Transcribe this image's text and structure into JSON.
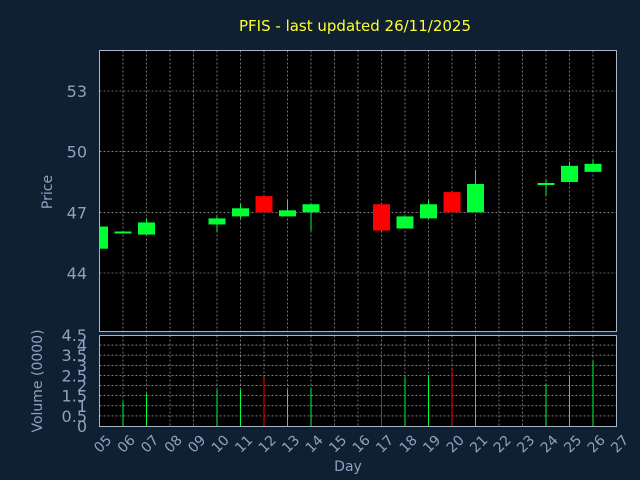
{
  "chart_data": {
    "type": "candlestick",
    "title": "PFIS - last updated 26/11/2025",
    "ylabel_price": "Price",
    "ylabel_volume": "Volume (0000)",
    "xlabel": "Day",
    "x_ticks": [
      "05",
      "06",
      "07",
      "08",
      "09",
      "10",
      "11",
      "12",
      "13",
      "14",
      "15",
      "16",
      "17",
      "18",
      "19",
      "20",
      "21",
      "22",
      "23",
      "24",
      "25",
      "26",
      "27"
    ],
    "price_ticks": [
      "53",
      "50",
      "47",
      "44"
    ],
    "volume_ticks": [
      "0",
      "0.5",
      "1",
      "1.5",
      "2",
      "2.5",
      "3",
      "3.5",
      "4",
      "4.5"
    ],
    "price_range": [
      42.0,
      55.0
    ],
    "volume_range": [
      0,
      4.5
    ],
    "grid": true,
    "up_color": "#00ff33",
    "down_color": "#ff0000",
    "candles": [
      {
        "day": 5,
        "open": 45.2,
        "high": 46.3,
        "low": 45.2,
        "close": 46.3,
        "volume": 0.0
      },
      {
        "day": 6,
        "open": 46.0,
        "high": 46.0,
        "low": 46.0,
        "close": 46.0,
        "volume": 1.2
      },
      {
        "day": 7,
        "open": 45.9,
        "high": 46.7,
        "low": 45.9,
        "close": 46.5,
        "volume": 1.6
      },
      {
        "day": 10,
        "open": 46.4,
        "high": 46.8,
        "low": 46.0,
        "close": 46.7,
        "volume": 1.8
      },
      {
        "day": 11,
        "open": 46.8,
        "high": 47.4,
        "low": 46.7,
        "close": 47.2,
        "volume": 1.8
      },
      {
        "day": 12,
        "open": 47.8,
        "high": 47.8,
        "low": 47.0,
        "close": 47.0,
        "volume": 2.4
      },
      {
        "day": 13,
        "open": 46.8,
        "high": 47.6,
        "low": 46.8,
        "close": 47.1,
        "volume": 1.8
      },
      {
        "day": 14,
        "open": 47.0,
        "high": 47.4,
        "low": 46.1,
        "close": 47.4,
        "volume": 1.9
      },
      {
        "day": 17,
        "open": 47.4,
        "high": 47.4,
        "low": 46.1,
        "close": 46.1,
        "volume": 3.2
      },
      {
        "day": 18,
        "open": 46.2,
        "high": 46.8,
        "low": 46.2,
        "close": 46.8,
        "volume": 2.4
      },
      {
        "day": 19,
        "open": 46.7,
        "high": 47.6,
        "low": 46.7,
        "close": 47.4,
        "volume": 2.5
      },
      {
        "day": 20,
        "open": 48.0,
        "high": 48.0,
        "low": 47.0,
        "close": 47.0,
        "volume": 2.8
      },
      {
        "day": 21,
        "open": 47.0,
        "high": 49.1,
        "low": 47.0,
        "close": 48.4,
        "volume": 4.4
      },
      {
        "day": 24,
        "open": 48.4,
        "high": 48.6,
        "low": 47.8,
        "close": 48.4,
        "volume": 2.1
      },
      {
        "day": 25,
        "open": 48.5,
        "high": 49.5,
        "low": 48.5,
        "close": 49.3,
        "volume": 2.5
      },
      {
        "day": 26,
        "open": 49.0,
        "high": 49.6,
        "low": 49.0,
        "close": 49.4,
        "volume": 3.2
      }
    ]
  }
}
